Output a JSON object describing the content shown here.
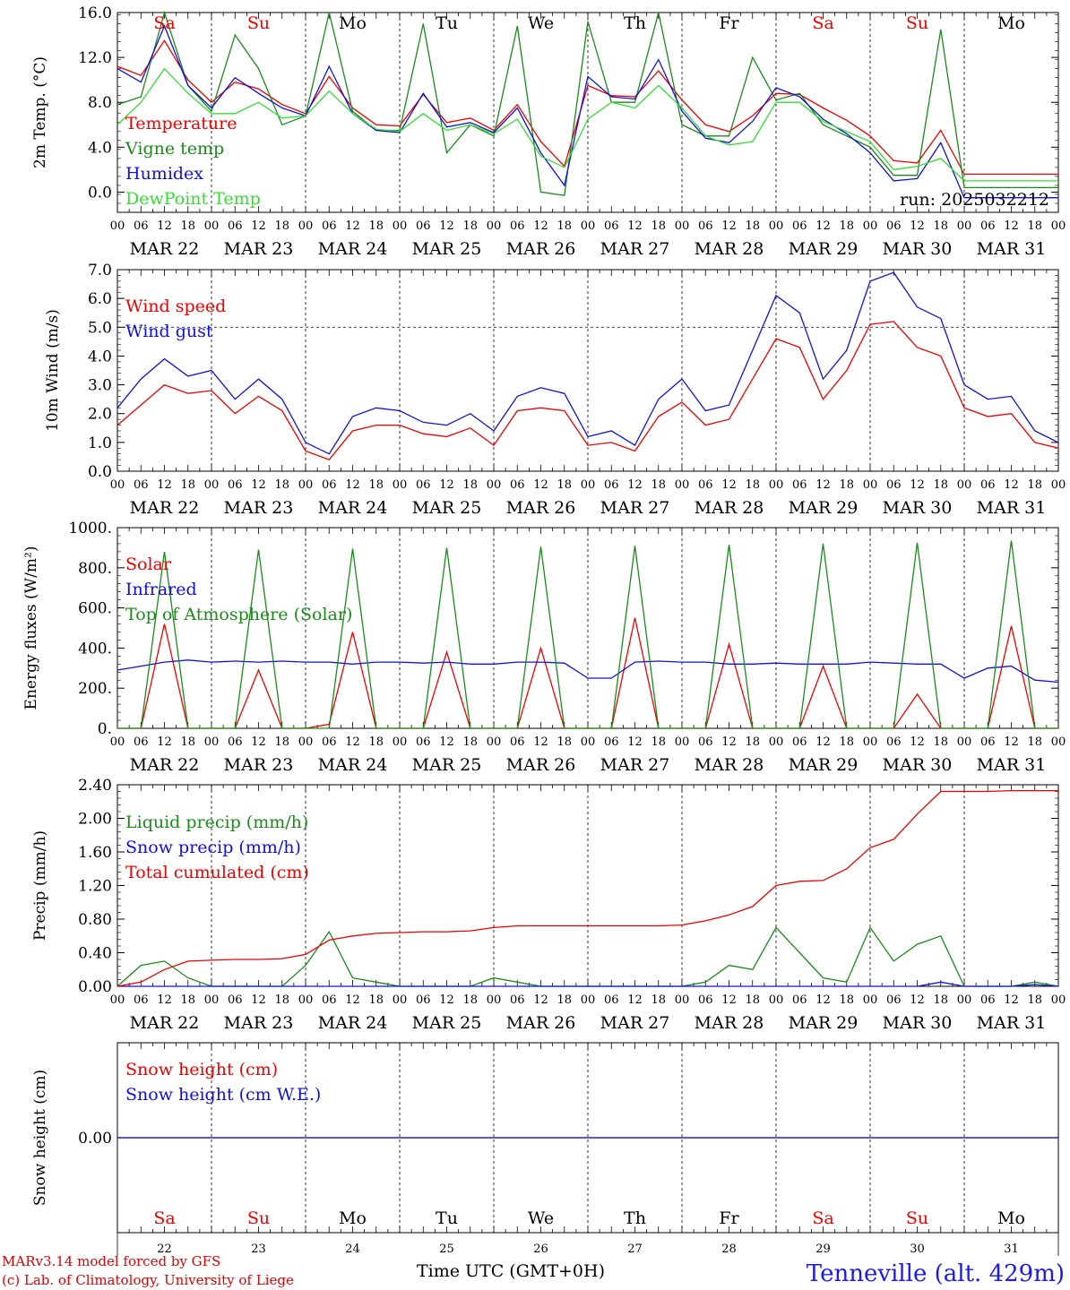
{
  "time_axis": {
    "label": "Time UTC (GMT+0H)",
    "hour_labels": [
      "00",
      "06",
      "12",
      "18"
    ],
    "dates": [
      "MAR 22",
      "MAR 23",
      "MAR 24",
      "MAR 25",
      "MAR 26",
      "MAR 27",
      "MAR 28",
      "MAR 29",
      "MAR 30",
      "MAR 31"
    ],
    "day_names": [
      "Sa",
      "Su",
      "Mo",
      "Tu",
      "We",
      "Th",
      "Fr",
      "Sa",
      "Su",
      "Mo"
    ],
    "day_numbers": [
      "22",
      "23",
      "24",
      "25",
      "26",
      "27",
      "28",
      "29",
      "30",
      "31"
    ],
    "day_colors": [
      "#ee0000",
      "#ee0000",
      "#000000",
      "#000000",
      "#000000",
      "#000000",
      "#000000",
      "#ee0000",
      "#ee0000",
      "#000000"
    ],
    "x_hours_range": [
      0,
      240
    ]
  },
  "footer": {
    "model_line": "MARv3.14 model forced by GFS",
    "lab_line": "(c) Lab. of Climatology, University of Liege",
    "station": "Tenneville (alt. 429m)"
  },
  "colors": {
    "red": "#ee0000",
    "green": "#1a8a1a",
    "blue": "#1010dd",
    "lightgreen": "#33dd33",
    "footer_red": "#dd0000",
    "station_blue": "#1a1aee"
  },
  "chart_data": [
    {
      "type": "line",
      "ylabel": "2m Temp. (°C)",
      "ylim": [
        -1.8,
        16.0
      ],
      "yticks": [
        0.0,
        4.0,
        8.0,
        12.0,
        16.0
      ],
      "ytick_labels": [
        "0.0",
        "4.0",
        "8.0",
        "12.0",
        "16.0"
      ],
      "annotation": "run: 2025032212",
      "x_hours": [
        0,
        6,
        12,
        18,
        24,
        30,
        36,
        42,
        48,
        54,
        60,
        66,
        72,
        78,
        84,
        90,
        96,
        102,
        108,
        114,
        120,
        126,
        132,
        138,
        144,
        150,
        156,
        162,
        168,
        174,
        180,
        186,
        192,
        198,
        204,
        210,
        216,
        222,
        228,
        234,
        240
      ],
      "series": [
        {
          "name": "Temperature",
          "color": "red",
          "values": [
            11.2,
            10.4,
            13.5,
            10.0,
            8.0,
            9.8,
            9.2,
            7.8,
            7.0,
            10.3,
            7.5,
            6.0,
            5.9,
            8.7,
            6.2,
            6.6,
            5.5,
            7.8,
            4.5,
            2.3,
            9.5,
            8.6,
            8.5,
            10.8,
            8.2,
            6.0,
            5.4,
            6.8,
            8.8,
            8.7,
            7.5,
            6.4,
            5.0,
            2.8,
            2.6,
            5.5,
            1.6,
            1.6,
            1.6,
            1.6,
            1.6
          ]
        },
        {
          "name": "Vigne temp",
          "color": "green",
          "values": [
            7.8,
            8.5,
            16.0,
            9.5,
            7.2,
            14.0,
            11.0,
            6.0,
            6.8,
            16.0,
            7.2,
            5.5,
            5.5,
            15.0,
            3.5,
            6.0,
            5.0,
            14.8,
            0.0,
            -0.3,
            15.2,
            8.0,
            8.0,
            16.0,
            6.0,
            5.0,
            5.0,
            12.0,
            8.2,
            8.8,
            6.0,
            5.0,
            4.0,
            1.5,
            1.5,
            14.5,
            0.4,
            0.4,
            0.4,
            0.4,
            0.4
          ]
        },
        {
          "name": "Humidex",
          "color": "blue",
          "values": [
            11.0,
            9.8,
            14.8,
            9.5,
            7.5,
            10.2,
            8.8,
            7.5,
            6.8,
            11.2,
            7.0,
            5.5,
            5.3,
            8.8,
            5.8,
            6.2,
            5.3,
            7.5,
            3.5,
            0.6,
            10.3,
            8.5,
            8.3,
            11.8,
            7.2,
            4.8,
            4.4,
            6.3,
            9.3,
            8.5,
            6.5,
            5.2,
            3.5,
            1.0,
            1.2,
            4.4,
            -0.5,
            -0.5,
            -0.5,
            -0.5,
            -0.5
          ]
        },
        {
          "name": "DewPoint Temp",
          "color": "lightgreen",
          "values": [
            6.0,
            8.0,
            11.0,
            8.8,
            7.0,
            7.0,
            8.0,
            6.6,
            6.8,
            9.0,
            7.0,
            5.6,
            5.4,
            7.0,
            5.5,
            6.0,
            5.2,
            6.5,
            3.2,
            2.2,
            6.5,
            8.0,
            7.5,
            9.5,
            7.5,
            5.0,
            4.2,
            4.5,
            8.0,
            8.0,
            6.3,
            5.4,
            4.5,
            2.0,
            2.3,
            3.0,
            1.0,
            1.0,
            1.0,
            1.0,
            1.0
          ]
        }
      ]
    },
    {
      "type": "line",
      "ylabel": "10m Wind (m/s)",
      "ylim": [
        0.0,
        7.0
      ],
      "yticks": [
        0.0,
        1.0,
        2.0,
        3.0,
        4.0,
        5.0,
        6.0,
        7.0
      ],
      "ytick_labels": [
        "0.0",
        "1.0",
        "2.0",
        "3.0",
        "4.0",
        "5.0",
        "6.0",
        "7.0"
      ],
      "hline": 5.0,
      "x_hours": [
        0,
        6,
        12,
        18,
        24,
        30,
        36,
        42,
        48,
        54,
        60,
        66,
        72,
        78,
        84,
        90,
        96,
        102,
        108,
        114,
        120,
        126,
        132,
        138,
        144,
        150,
        156,
        162,
        168,
        174,
        180,
        186,
        192,
        198,
        204,
        210,
        216,
        222,
        228,
        234,
        240
      ],
      "series": [
        {
          "name": "Wind speed",
          "color": "red",
          "values": [
            1.6,
            2.3,
            3.0,
            2.7,
            2.8,
            2.0,
            2.6,
            2.1,
            0.7,
            0.4,
            1.4,
            1.6,
            1.6,
            1.3,
            1.2,
            1.5,
            0.9,
            2.1,
            2.2,
            2.1,
            0.9,
            1.0,
            0.7,
            1.9,
            2.4,
            1.6,
            1.8,
            3.2,
            4.6,
            4.3,
            2.5,
            3.5,
            5.1,
            5.2,
            4.3,
            4.0,
            2.2,
            1.9,
            2.0,
            1.0,
            0.8
          ]
        },
        {
          "name": "Wind gust",
          "color": "blue",
          "values": [
            2.2,
            3.2,
            3.9,
            3.3,
            3.5,
            2.5,
            3.2,
            2.5,
            1.0,
            0.6,
            1.9,
            2.2,
            2.1,
            1.7,
            1.6,
            2.0,
            1.4,
            2.6,
            2.9,
            2.7,
            1.2,
            1.4,
            0.9,
            2.5,
            3.2,
            2.1,
            2.3,
            4.2,
            6.1,
            5.5,
            3.2,
            4.2,
            6.6,
            6.9,
            5.7,
            5.3,
            3.0,
            2.5,
            2.6,
            1.4,
            1.0
          ]
        }
      ]
    },
    {
      "type": "line",
      "ylabel": "Energy fluxes (W/m²)",
      "ylim": [
        0,
        1000
      ],
      "yticks": [
        0,
        200,
        400,
        600,
        800,
        1000
      ],
      "ytick_labels": [
        "0.",
        "200.",
        "400.",
        "600.",
        "800.",
        "1000."
      ],
      "x_hours": [
        0,
        6,
        12,
        18,
        24,
        30,
        36,
        42,
        48,
        54,
        60,
        66,
        72,
        78,
        84,
        90,
        96,
        102,
        108,
        114,
        120,
        126,
        132,
        138,
        144,
        150,
        156,
        162,
        168,
        174,
        180,
        186,
        192,
        198,
        204,
        210,
        216,
        222,
        228,
        234,
        240
      ],
      "series": [
        {
          "name": "Solar",
          "color": "red",
          "values": [
            0,
            0,
            520,
            0,
            0,
            0,
            290,
            0,
            0,
            20,
            480,
            0,
            0,
            0,
            380,
            0,
            0,
            0,
            400,
            0,
            0,
            0,
            550,
            0,
            0,
            0,
            420,
            0,
            0,
            0,
            310,
            0,
            0,
            0,
            170,
            0,
            0,
            0,
            510,
            0,
            0
          ]
        },
        {
          "name": "Infrared",
          "color": "blue",
          "values": [
            290,
            310,
            330,
            340,
            330,
            335,
            330,
            335,
            330,
            330,
            320,
            330,
            330,
            325,
            330,
            320,
            320,
            330,
            330,
            325,
            250,
            250,
            330,
            335,
            330,
            330,
            320,
            320,
            325,
            320,
            320,
            320,
            330,
            325,
            320,
            320,
            250,
            300,
            310,
            240,
            230
          ]
        },
        {
          "name": "Top of Atmosphere (Solar)",
          "color": "green",
          "values": [
            0,
            0,
            880,
            0,
            0,
            0,
            890,
            0,
            0,
            0,
            895,
            0,
            0,
            0,
            900,
            0,
            0,
            0,
            905,
            0,
            0,
            0,
            910,
            0,
            0,
            0,
            915,
            0,
            0,
            0,
            920,
            0,
            0,
            0,
            925,
            0,
            0,
            0,
            935,
            0,
            0
          ]
        }
      ]
    },
    {
      "type": "line",
      "ylabel": "Precip (mm/h)",
      "ylim": [
        0.0,
        2.4
      ],
      "yticks": [
        0.0,
        0.4,
        0.8,
        1.2,
        1.6,
        2.0,
        2.4
      ],
      "ytick_labels": [
        "0.00",
        "0.40",
        "0.80",
        "1.20",
        "1.60",
        "2.00",
        "2.40"
      ],
      "x_hours": [
        0,
        6,
        12,
        18,
        24,
        30,
        36,
        42,
        48,
        54,
        60,
        66,
        72,
        78,
        84,
        90,
        96,
        102,
        108,
        114,
        120,
        126,
        132,
        138,
        144,
        150,
        156,
        162,
        168,
        174,
        180,
        186,
        192,
        198,
        204,
        210,
        216,
        222,
        228,
        234,
        240
      ],
      "series": [
        {
          "name": "Liquid precip (mm/h)",
          "color": "green",
          "values": [
            0.0,
            0.25,
            0.3,
            0.1,
            0.0,
            0.0,
            0.0,
            0.0,
            0.25,
            0.65,
            0.1,
            0.05,
            0.0,
            0.0,
            0.0,
            0.0,
            0.1,
            0.05,
            0.0,
            0.0,
            0.0,
            0.0,
            0.0,
            0.0,
            0.0,
            0.05,
            0.25,
            0.2,
            0.7,
            0.4,
            0.1,
            0.05,
            0.7,
            0.3,
            0.5,
            0.6,
            0.0,
            0.0,
            0.0,
            0.05,
            0.0
          ]
        },
        {
          "name": "Snow precip (mm/h)",
          "color": "blue",
          "values": [
            0,
            0,
            0,
            0,
            0,
            0,
            0,
            0,
            0,
            0,
            0,
            0,
            0,
            0,
            0,
            0,
            0,
            0,
            0,
            0,
            0,
            0,
            0,
            0,
            0,
            0,
            0,
            0,
            0,
            0,
            0,
            0,
            0,
            0,
            0,
            0.05,
            0,
            0,
            0,
            0.02,
            0
          ]
        },
        {
          "name": "Total cumulated (cm)",
          "color": "red",
          "values": [
            0.0,
            0.05,
            0.2,
            0.3,
            0.31,
            0.32,
            0.32,
            0.33,
            0.38,
            0.55,
            0.6,
            0.63,
            0.64,
            0.65,
            0.65,
            0.66,
            0.7,
            0.72,
            0.72,
            0.72,
            0.72,
            0.72,
            0.72,
            0.72,
            0.73,
            0.78,
            0.85,
            0.95,
            1.2,
            1.25,
            1.26,
            1.4,
            1.65,
            1.75,
            2.05,
            2.32,
            2.32,
            2.32,
            2.33,
            2.33,
            2.33
          ]
        }
      ]
    },
    {
      "type": "line",
      "ylabel": "Snow height (cm)",
      "yticks": [
        0.0
      ],
      "ytick_labels": [
        "0.00"
      ],
      "x_hours": [
        0,
        240
      ],
      "series": [
        {
          "name": "Snow height (cm)",
          "color": "red",
          "values": [
            0.0,
            0.0
          ]
        },
        {
          "name": "Snow height (cm W.E.)",
          "color": "blue",
          "values": [
            0.0,
            0.0
          ]
        }
      ]
    }
  ]
}
